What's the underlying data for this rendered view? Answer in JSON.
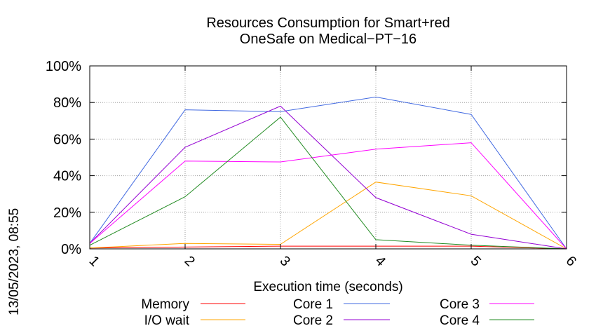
{
  "chart_data": {
    "type": "line",
    "title": "Resources Consumption for Smart+red",
    "subtitle": "OneSafe on Medical−PT−16",
    "xlabel": "Execution time (seconds)",
    "ylabel": "",
    "side_label": "13/05/2023, 08:55",
    "x": [
      1,
      2,
      3,
      4,
      5,
      6
    ],
    "x_ticks": [
      "1",
      "2",
      "3",
      "4",
      "5",
      "6"
    ],
    "y_ticks": [
      "0%",
      "20%",
      "40%",
      "60%",
      "80%",
      "100%"
    ],
    "xlim": [
      1,
      6
    ],
    "ylim": [
      0,
      100
    ],
    "grid": true,
    "legend_position": "bottom",
    "series": [
      {
        "name": "Memory",
        "color": "#ff0000",
        "values": [
          0.5,
          1,
          1.5,
          1.5,
          1.5,
          0
        ]
      },
      {
        "name": "I/O wait",
        "color": "#ffa500",
        "values": [
          0.5,
          3,
          2.5,
          36.5,
          29,
          0
        ]
      },
      {
        "name": "Core 1",
        "color": "#4169e1",
        "values": [
          3,
          76,
          75,
          83,
          73.5,
          0
        ]
      },
      {
        "name": "Core 2",
        "color": "#9400d3",
        "values": [
          3,
          55.5,
          78,
          28,
          8,
          0
        ]
      },
      {
        "name": "Core 3",
        "color": "#ff00ff",
        "values": [
          3,
          48,
          47.5,
          54.5,
          58,
          0
        ]
      },
      {
        "name": "Core 4",
        "color": "#228b22",
        "values": [
          2,
          28.5,
          72,
          5,
          2,
          0
        ]
      }
    ]
  }
}
